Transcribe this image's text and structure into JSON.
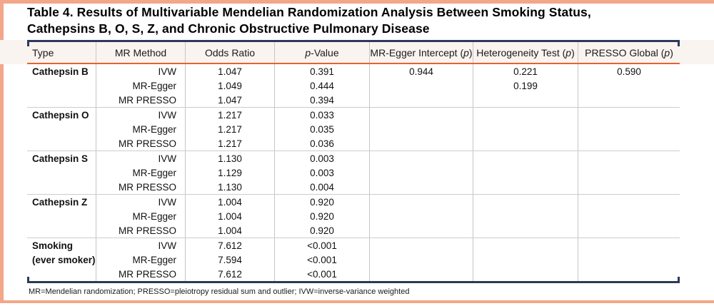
{
  "colors": {
    "salmon": "#F3A689",
    "navy": "#2B3A5A",
    "orange": "#E8622A",
    "header-bg": "#FAF4F0",
    "divider": "#C5C5C5",
    "divider-h": "#CCCCCC"
  },
  "title": {
    "line1": "Table 4. Results of Multivariable Mendelian Randomization Analysis Between Smoking Status,",
    "line2": "Cathepsins B, O, S, Z, and Chronic Obstructive Pulmonary Disease"
  },
  "table": {
    "columns": [
      {
        "pre": "Type",
        "italic": "",
        "post": ""
      },
      {
        "pre": "MR Method",
        "italic": "",
        "post": ""
      },
      {
        "pre": "Odds Ratio",
        "italic": "",
        "post": ""
      },
      {
        "pre": "",
        "italic": "p",
        "post": "-Value"
      },
      {
        "pre": "MR-Egger Intercept (",
        "italic": "p",
        "post": ")"
      },
      {
        "pre": "Heterogeneity Test (",
        "italic": "p",
        "post": ")"
      },
      {
        "pre": "PRESSO Global (",
        "italic": "p",
        "post": ")"
      }
    ],
    "groups": [
      {
        "rows": [
          {
            "type": "Cathepsin B",
            "method": "IVW",
            "odds_ratio": "1.047",
            "p_value": "0.391",
            "mr_egger_intercept_p": "0.944",
            "heterogeneity_test_p": "0.221",
            "presso_global_p": "0.590"
          },
          {
            "type": "",
            "method": "MR-Egger",
            "odds_ratio": "1.049",
            "p_value": "0.444",
            "mr_egger_intercept_p": "",
            "heterogeneity_test_p": "0.199",
            "presso_global_p": ""
          },
          {
            "type": "",
            "method": "MR PRESSO",
            "odds_ratio": "1.047",
            "p_value": "0.394",
            "mr_egger_intercept_p": "",
            "heterogeneity_test_p": "",
            "presso_global_p": ""
          }
        ]
      },
      {
        "rows": [
          {
            "type": "Cathepsin O",
            "method": "IVW",
            "odds_ratio": "1.217",
            "p_value": "0.033",
            "mr_egger_intercept_p": "",
            "heterogeneity_test_p": "",
            "presso_global_p": ""
          },
          {
            "type": "",
            "method": "MR-Egger",
            "odds_ratio": "1.217",
            "p_value": "0.035",
            "mr_egger_intercept_p": "",
            "heterogeneity_test_p": "",
            "presso_global_p": ""
          },
          {
            "type": "",
            "method": "MR PRESSO",
            "odds_ratio": "1.217",
            "p_value": "0.036",
            "mr_egger_intercept_p": "",
            "heterogeneity_test_p": "",
            "presso_global_p": ""
          }
        ]
      },
      {
        "rows": [
          {
            "type": "Cathepsin S",
            "method": "IVW",
            "odds_ratio": "1.130",
            "p_value": "0.003",
            "mr_egger_intercept_p": "",
            "heterogeneity_test_p": "",
            "presso_global_p": ""
          },
          {
            "type": "",
            "method": "MR-Egger",
            "odds_ratio": "1.129",
            "p_value": "0.003",
            "mr_egger_intercept_p": "",
            "heterogeneity_test_p": "",
            "presso_global_p": ""
          },
          {
            "type": "",
            "method": "MR PRESSO",
            "odds_ratio": "1.130",
            "p_value": "0.004",
            "mr_egger_intercept_p": "",
            "heterogeneity_test_p": "",
            "presso_global_p": ""
          }
        ]
      },
      {
        "rows": [
          {
            "type": "Cathepsin Z",
            "method": "IVW",
            "odds_ratio": "1.004",
            "p_value": "0.920",
            "mr_egger_intercept_p": "",
            "heterogeneity_test_p": "",
            "presso_global_p": ""
          },
          {
            "type": "",
            "method": "MR-Egger",
            "odds_ratio": "1.004",
            "p_value": "0.920",
            "mr_egger_intercept_p": "",
            "heterogeneity_test_p": "",
            "presso_global_p": ""
          },
          {
            "type": "",
            "method": "MR PRESSO",
            "odds_ratio": "1.004",
            "p_value": "0.920",
            "mr_egger_intercept_p": "",
            "heterogeneity_test_p": "",
            "presso_global_p": ""
          }
        ]
      },
      {
        "rows": [
          {
            "type": "Smoking",
            "method": "IVW",
            "odds_ratio": "7.612",
            "p_value": "<0.001",
            "mr_egger_intercept_p": "",
            "heterogeneity_test_p": "",
            "presso_global_p": ""
          },
          {
            "type": "(ever smoker)",
            "method": "MR-Egger",
            "odds_ratio": "7.594",
            "p_value": "<0.001",
            "mr_egger_intercept_p": "",
            "heterogeneity_test_p": "",
            "presso_global_p": ""
          },
          {
            "type": "",
            "method": "MR PRESSO",
            "odds_ratio": "7.612",
            "p_value": "<0.001",
            "mr_egger_intercept_p": "",
            "heterogeneity_test_p": "",
            "presso_global_p": ""
          }
        ]
      }
    ]
  },
  "footnote": "MR=Mendelian randomization; PRESSO=pleiotropy residual sum and outlier; IVW=inverse-variance weighted"
}
